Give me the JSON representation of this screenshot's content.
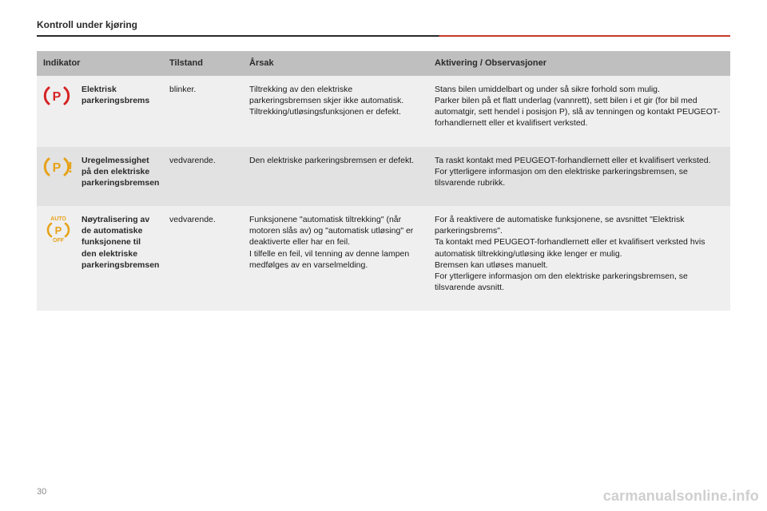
{
  "page": {
    "section_title": "Kontroll under kjøring",
    "page_number": "30",
    "watermark": "carmanualsonline.info"
  },
  "colors": {
    "header_bg": "#bfbfbf",
    "row_odd_bg": "#efefef",
    "row_even_bg": "#e2e2e2",
    "rule_dark": "#2a2a2a",
    "rule_accent": "#c63a2c",
    "icon_red": "#d62324",
    "icon_amber": "#e6a21a",
    "text": "#1a1a1a",
    "muted": "#8a8a8a"
  },
  "table": {
    "headers": {
      "indicator": "Indikator",
      "state": "Tilstand",
      "cause": "Årsak",
      "action": "Aktivering / Observasjoner"
    },
    "rows": [
      {
        "icon": "p-brake-red",
        "name": "Elektrisk parkeringsbrems",
        "state": "blinker.",
        "cause": "Tiltrekking av den elektriske parkeringsbremsen skjer ikke automatisk.\nTiltrekking/utløsingsfunksjonen er defekt.",
        "action": "Stans bilen umiddelbart og under så sikre forhold som mulig.\nParker bilen på et flatt underlag (vannrett), sett bilen i et gir (for bil med automatgir, sett hendel i posisjon P), slå av tenningen og kontakt PEUGEOT-forhandlernett eller et kvalifisert verksted."
      },
      {
        "icon": "p-brake-amber-warn",
        "name": "Uregelmessighet på den elektriske parkeringsbremsen",
        "state": "vedvarende.",
        "cause": "Den elektriske parkeringsbremsen er defekt.",
        "action": "Ta raskt kontakt med PEUGEOT-forhandlernett eller et kvalifisert verksted.\nFor ytterligere informasjon om den elektriske parkeringsbremsen, se tilsvarende rubrikk."
      },
      {
        "icon": "p-brake-auto-off-amber",
        "name": "Nøytralisering av de automatiske funksjonene til den elektriske parkeringsbremsen",
        "state": "vedvarende.",
        "cause": "Funksjonene \"automatisk tiltrekking\" (når motoren slås av) og \"automatisk utløsing\" er deaktiverte eller har en feil.\nI tilfelle en feil, vil tenning av denne lampen medfølges av en varselmelding.",
        "action": "For å reaktivere de automatiske funksjonene, se avsnittet \"Elektrisk parkeringsbrems\".\nTa kontakt med PEUGEOT-forhandlernett eller et kvalifisert verksted hvis automatisk tiltrekking/utløsing ikke lenger er mulig.\nBremsen kan utløses manuelt.\nFor ytterligere informasjon om den elektriske parkeringsbremsen, se tilsvarende avsnitt."
      }
    ]
  }
}
